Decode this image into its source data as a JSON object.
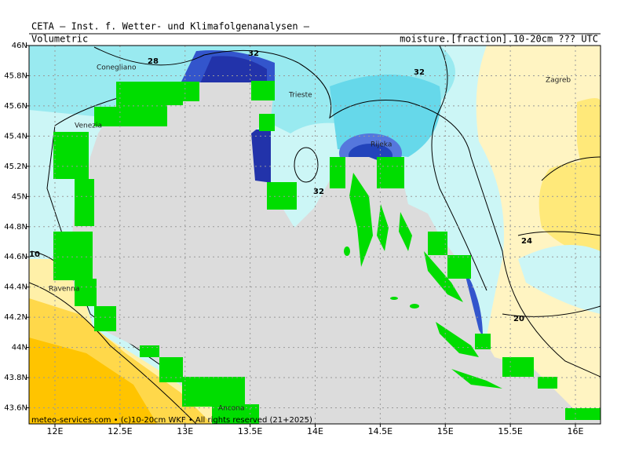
{
  "header": {
    "title": "CETA – Inst. f. Wetter- und Klimafolgenanalysen –",
    "left": "Volumetric",
    "right": "moisture.[fraction].10-20cm ??? UTC"
  },
  "map": {
    "lon_ticks": [
      {
        "value": 12,
        "label": "12E"
      },
      {
        "value": 12.5,
        "label": "12.5E"
      },
      {
        "value": 13,
        "label": "13E"
      },
      {
        "value": 13.5,
        "label": "13.5E"
      },
      {
        "value": 14,
        "label": "14E"
      },
      {
        "value": 14.5,
        "label": "14.5E"
      },
      {
        "value": 15,
        "label": "15E"
      },
      {
        "value": 15.5,
        "label": "15.5E"
      },
      {
        "value": 16,
        "label": "16E"
      }
    ],
    "lat_ticks": [
      {
        "value": 46,
        "label": "46N"
      },
      {
        "value": 45.8,
        "label": "45.8N"
      },
      {
        "value": 45.6,
        "label": "45.6N"
      },
      {
        "value": 45.4,
        "label": "45.4N"
      },
      {
        "value": 45.2,
        "label": "45.2N"
      },
      {
        "value": 45,
        "label": "45N"
      },
      {
        "value": 44.8,
        "label": "44.8N"
      },
      {
        "value": 44.6,
        "label": "44.6N"
      },
      {
        "value": 44.4,
        "label": "44.4N"
      },
      {
        "value": 44.2,
        "label": "44.2N"
      },
      {
        "value": 44,
        "label": "44N"
      },
      {
        "value": 43.8,
        "label": "43.8N"
      },
      {
        "value": 43.6,
        "label": "43.6N"
      }
    ],
    "cities": [
      "Conegliano",
      "Venezia",
      "Trieste",
      "Rijeka",
      "Zagreb",
      "Ravenna",
      "Ancona"
    ],
    "contour_labels": [
      "28",
      "32",
      "32",
      "32",
      "24",
      "20",
      "10"
    ]
  },
  "footer": "meteo-services.com • (c)10-20cm WKF • All rights reserved (21+2025)"
}
